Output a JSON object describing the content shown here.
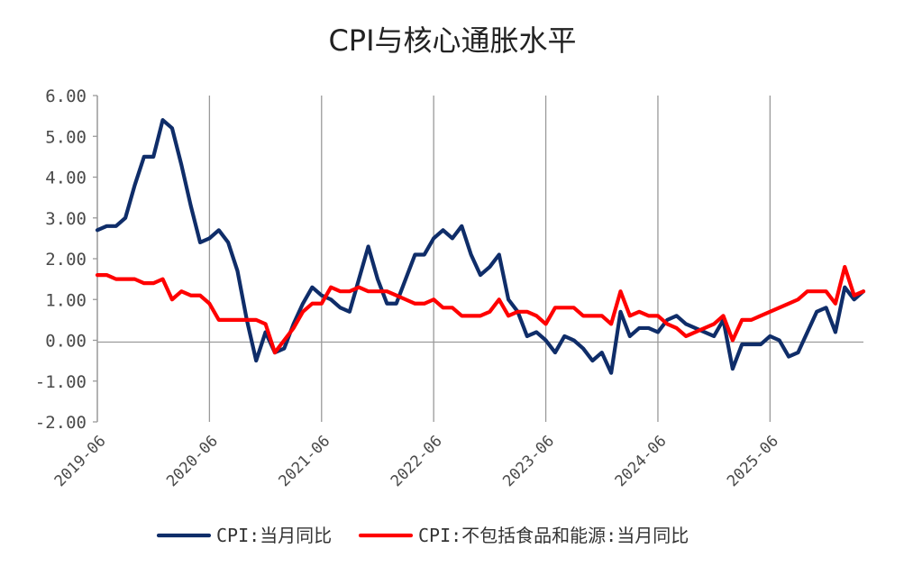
{
  "chart_data": {
    "type": "line",
    "title": "CPI与核心通胀水平",
    "ylim": [
      -2,
      6
    ],
    "yticks": [
      -2,
      -1,
      0,
      1,
      2,
      3,
      4,
      5,
      6
    ],
    "ytick_labels": [
      "-2.00",
      "-1.00",
      "0.00",
      "1.00",
      "2.00",
      "3.00",
      "4.00",
      "5.00",
      "6.00"
    ],
    "x_start": "2019-06",
    "xtick_labels": [
      "2019-06",
      "2020-06",
      "2021-06",
      "2022-06",
      "2023-06",
      "2024-06",
      "2025-06"
    ],
    "legend_position": "bottom",
    "series": [
      {
        "name": "CPI:当月同比",
        "color": "#0f2d69",
        "values": [
          2.7,
          2.8,
          2.8,
          3.0,
          3.8,
          4.5,
          4.5,
          5.4,
          5.2,
          4.3,
          3.3,
          2.4,
          2.5,
          2.7,
          2.4,
          1.7,
          0.5,
          -0.5,
          0.2,
          -0.3,
          -0.2,
          0.4,
          0.9,
          1.3,
          1.1,
          1.0,
          0.8,
          0.7,
          1.5,
          2.3,
          1.5,
          0.9,
          0.9,
          1.5,
          2.1,
          2.1,
          2.5,
          2.7,
          2.5,
          2.8,
          2.1,
          1.6,
          1.8,
          2.1,
          1.0,
          0.7,
          0.1,
          0.2,
          0.0,
          -0.3,
          0.1,
          0.0,
          -0.2,
          -0.5,
          -0.3,
          -0.8,
          0.7,
          0.1,
          0.3,
          0.3,
          0.2,
          0.5,
          0.6,
          0.4,
          0.3,
          0.2,
          0.1,
          0.5,
          -0.7,
          -0.1,
          -0.1,
          -0.1,
          0.1,
          0.0,
          -0.4,
          -0.3,
          0.2,
          0.7,
          0.8,
          0.2,
          1.3,
          1.0,
          1.2
        ]
      },
      {
        "name": "CPI:不包括食品和能源:当月同比",
        "color": "#ff0000",
        "values": [
          1.6,
          1.6,
          1.5,
          1.5,
          1.5,
          1.4,
          1.4,
          1.5,
          1.0,
          1.2,
          1.1,
          1.1,
          0.9,
          0.5,
          0.5,
          0.5,
          0.5,
          0.5,
          0.4,
          -0.3,
          0.0,
          0.3,
          0.7,
          0.9,
          0.9,
          1.3,
          1.2,
          1.2,
          1.3,
          1.2,
          1.2,
          1.2,
          1.1,
          1.0,
          0.9,
          0.9,
          1.0,
          0.8,
          0.8,
          0.6,
          0.6,
          0.6,
          0.7,
          1.0,
          0.6,
          0.7,
          0.7,
          0.6,
          0.4,
          0.8,
          0.8,
          0.8,
          0.6,
          0.6,
          0.6,
          0.4,
          1.2,
          0.6,
          0.7,
          0.6,
          0.6,
          0.4,
          0.3,
          0.1,
          0.2,
          0.3,
          0.4,
          0.6,
          0.0,
          0.5,
          0.5,
          0.6,
          0.7,
          0.8,
          0.9,
          1.0,
          1.2,
          1.2,
          1.2,
          0.9,
          1.8,
          1.1,
          1.2
        ]
      }
    ]
  }
}
